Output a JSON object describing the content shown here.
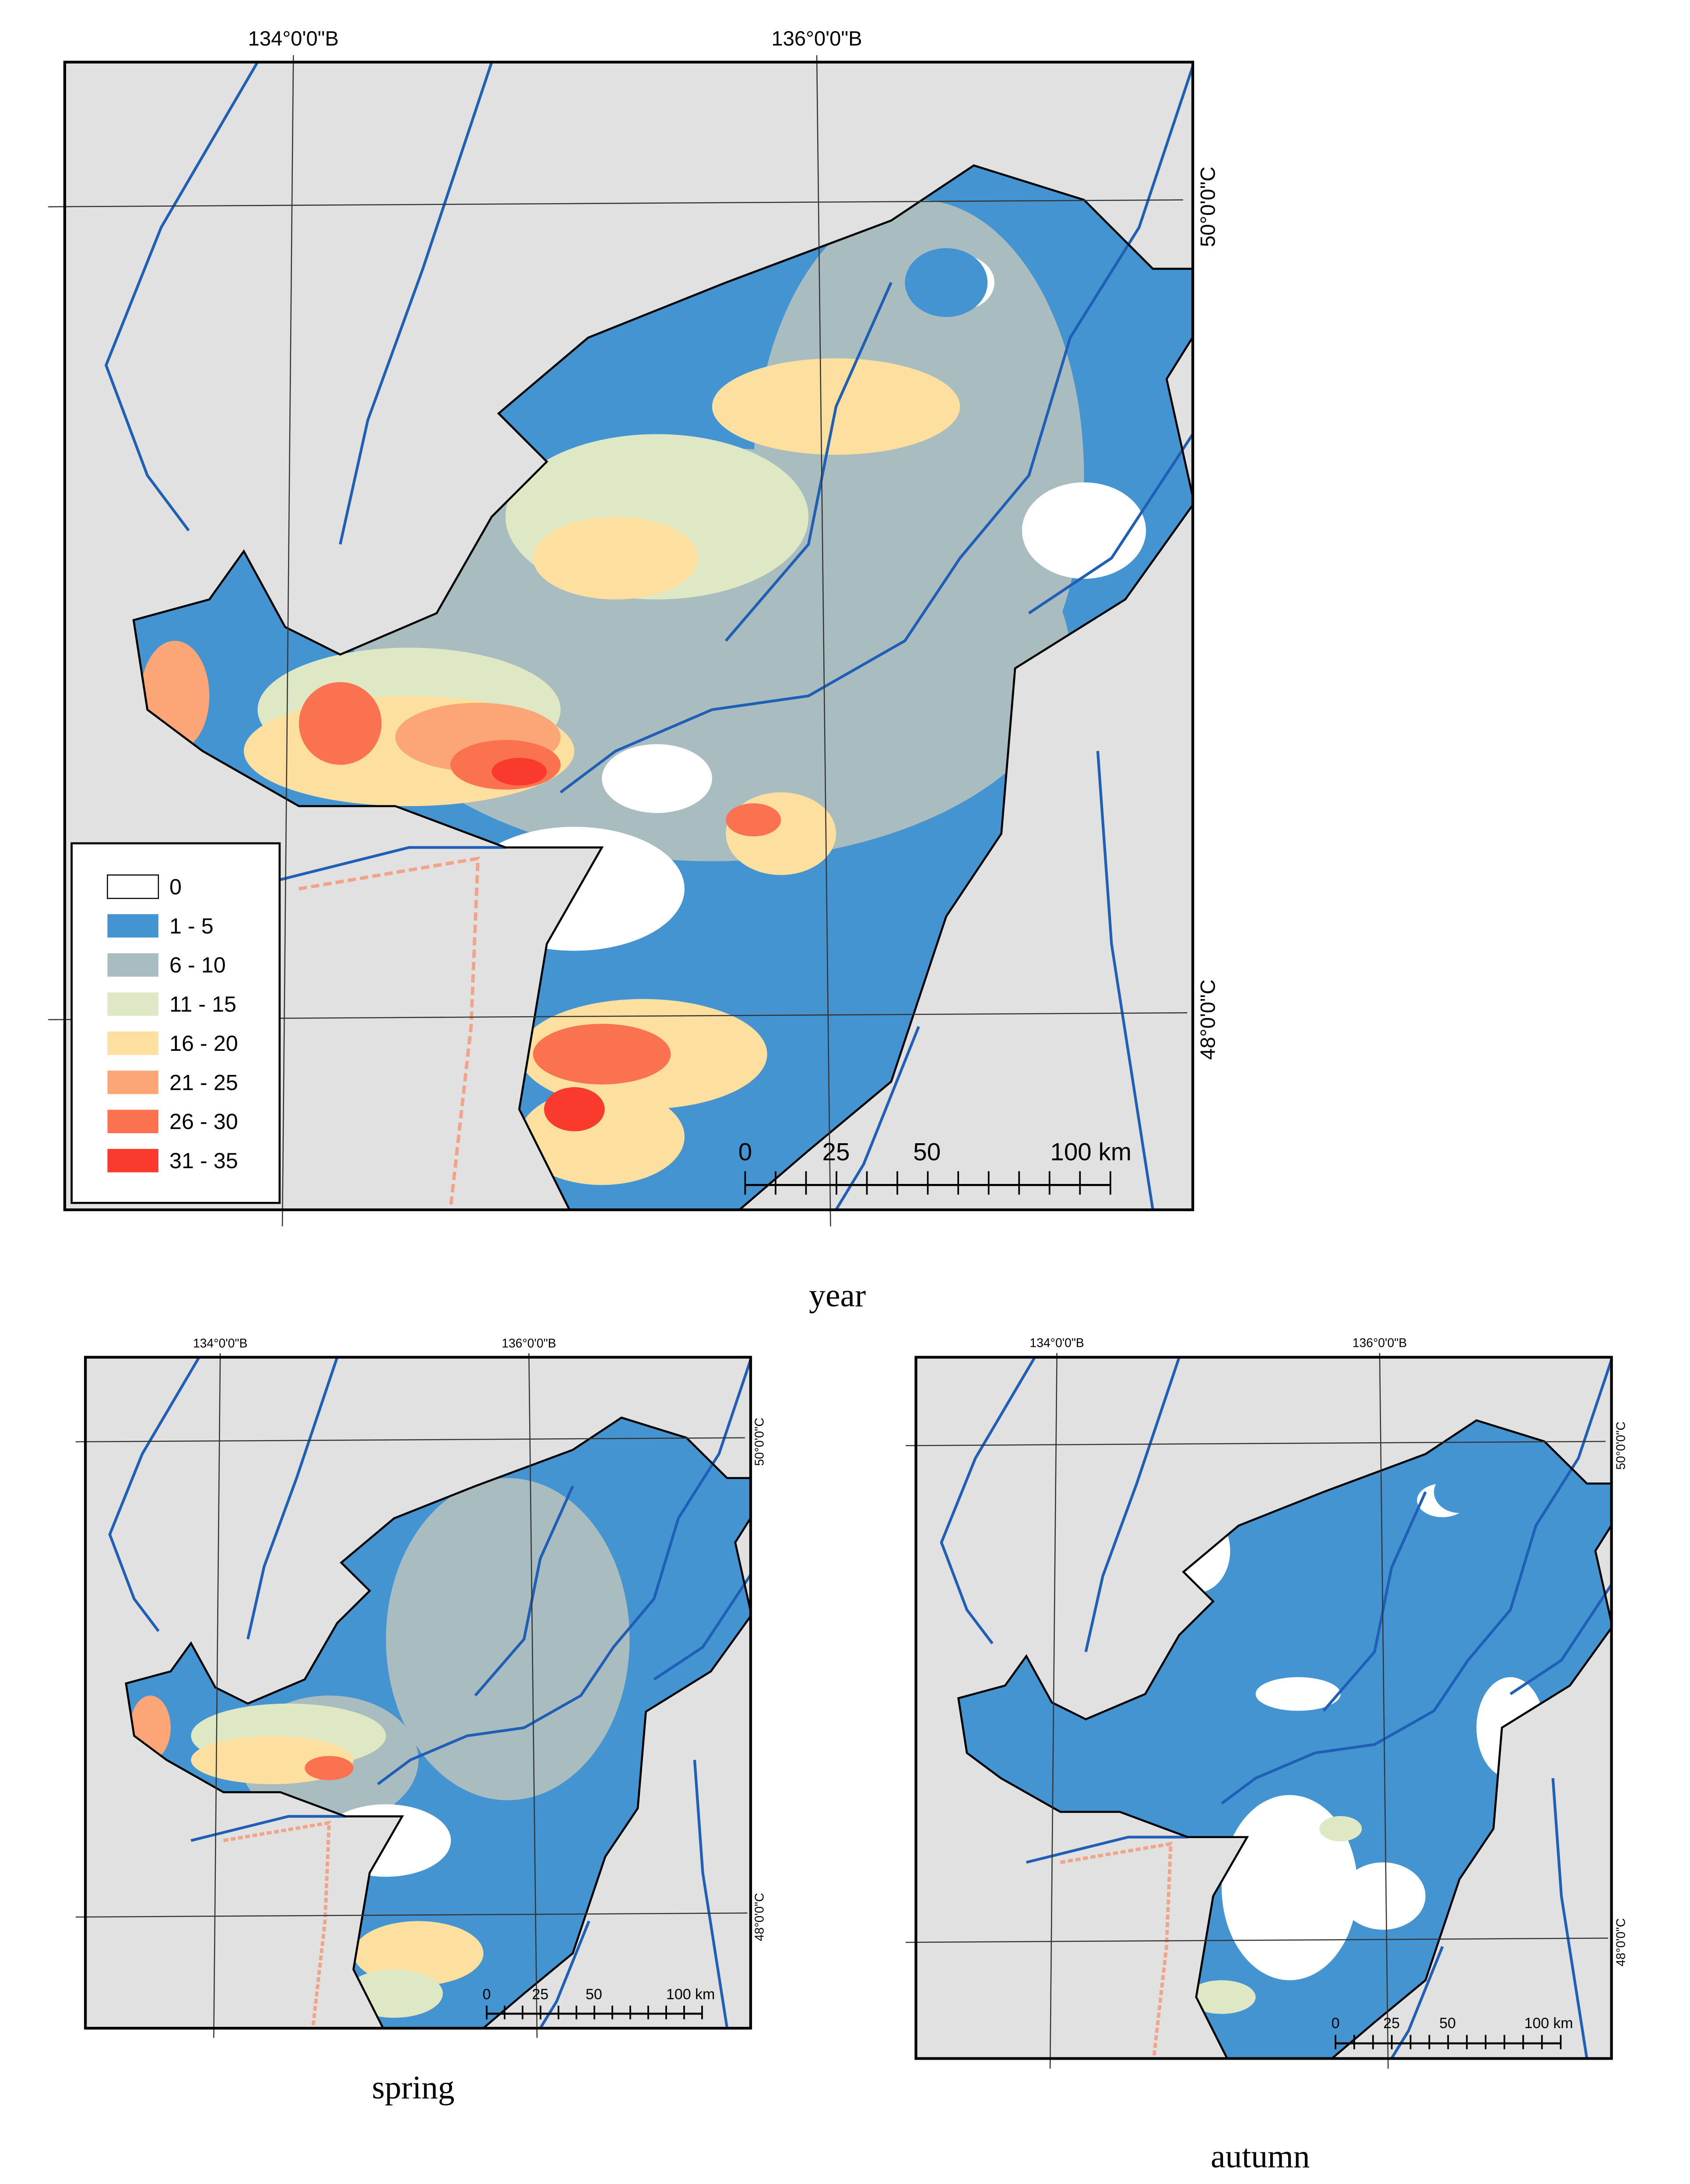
{
  "panels": [
    {
      "caption": "year",
      "lon_labels": [
        "134°0'0\"B",
        "136°0'0\"B"
      ],
      "lat_labels": [
        "50°0'0\"C",
        "48°0'0\"C"
      ],
      "scale_labels": [
        "0",
        "25",
        "50",
        "100 km"
      ]
    },
    {
      "caption": "spring",
      "lon_labels": [
        "134°0'0\"B",
        "136°0'0\"B"
      ],
      "lat_labels": [
        "50°0'0\"C",
        "48°0'0\"C"
      ],
      "scale_labels": [
        "0",
        "25",
        "50",
        "100 km"
      ]
    },
    {
      "caption": "autumn",
      "lon_labels": [
        "134°0'0\"B",
        "136°0'0\"B"
      ],
      "lat_labels": [
        "50°0'0\"C",
        "48°0'0\"C"
      ],
      "scale_labels": [
        "0",
        "25",
        "50",
        "100 km"
      ]
    }
  ],
  "legend": {
    "items": [
      {
        "label": "0",
        "color": "#ffffff"
      },
      {
        "label": "1 - 5",
        "color": "#4394d0"
      },
      {
        "label": "6 - 10",
        "color": "#a9bcbf"
      },
      {
        "label": "11 - 15",
        "color": "#dfe8c4"
      },
      {
        "label": "16 - 20",
        "color": "#fde0a0"
      },
      {
        "label": "21 - 25",
        "color": "#fca577"
      },
      {
        "label": "26 - 30",
        "color": "#fb7250"
      },
      {
        "label": "31 - 35",
        "color": "#fb3a2e"
      }
    ]
  }
}
